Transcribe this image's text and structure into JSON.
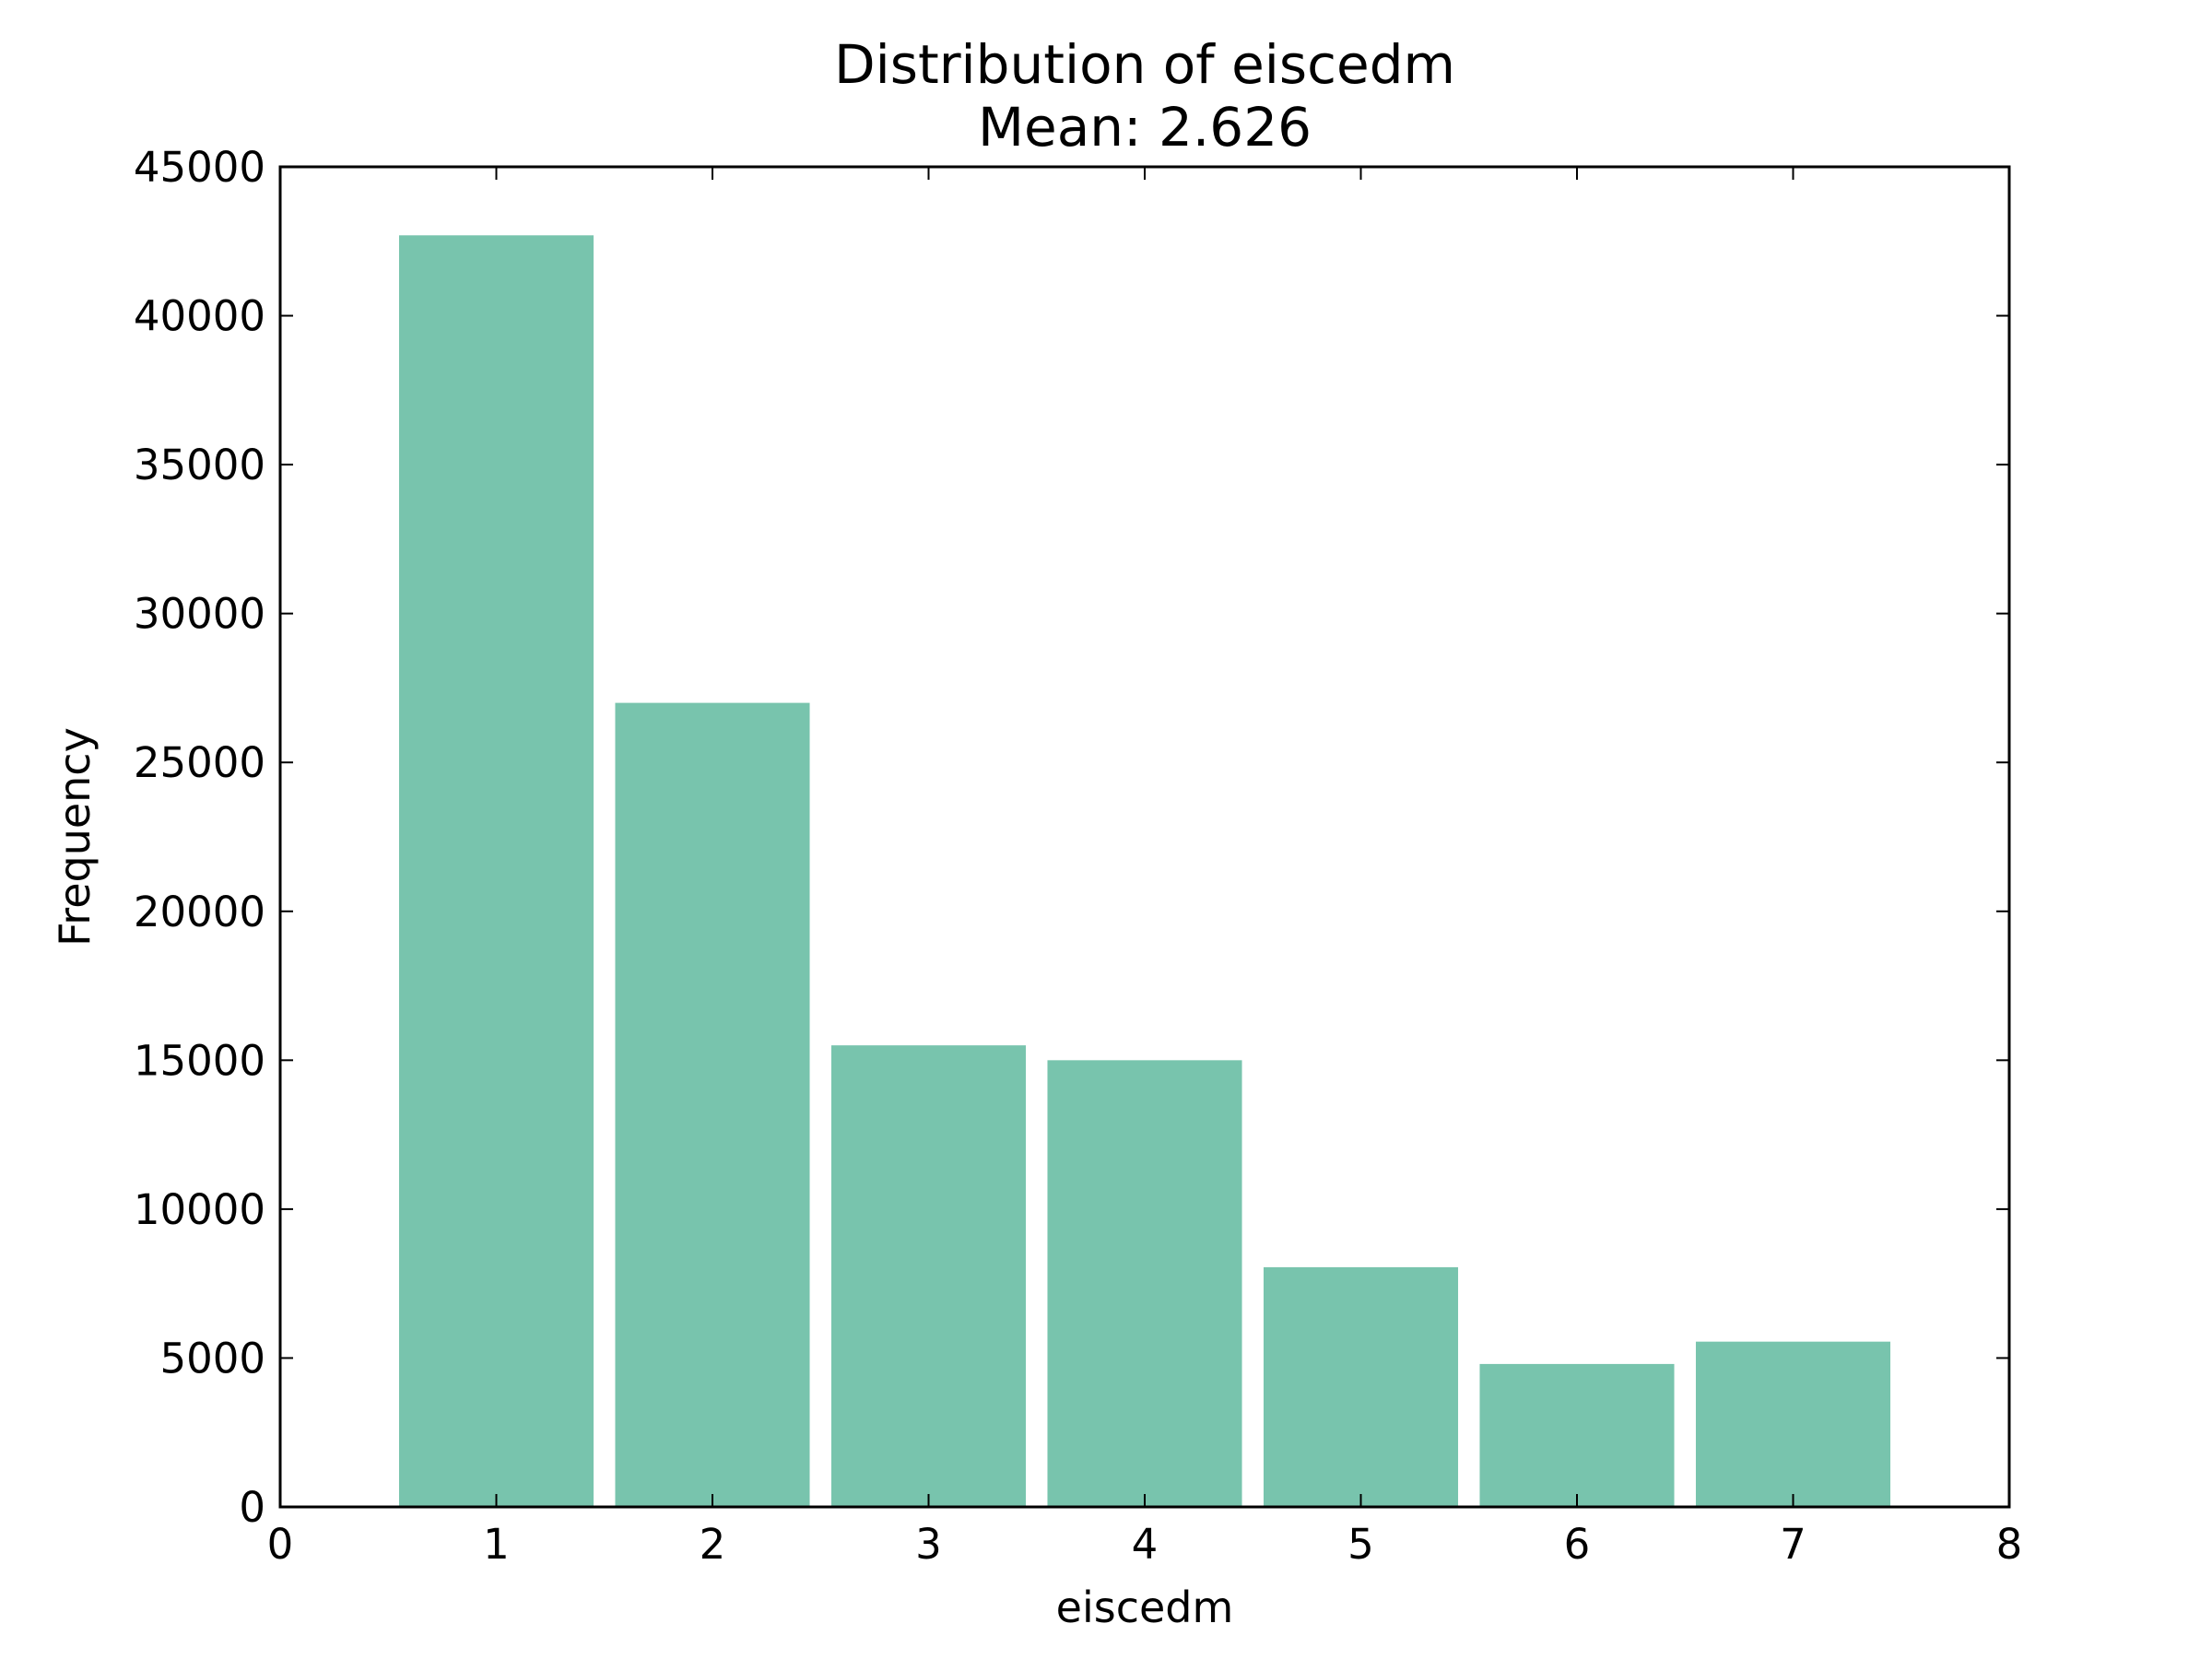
{
  "chart_data": {
    "type": "bar",
    "title": "Distribution of eiscedm",
    "subtitle": "Mean: 2.626",
    "xlabel": "eiscedm",
    "ylabel": "Frequency",
    "categories": [
      1,
      2,
      3,
      4,
      5,
      6,
      7
    ],
    "values": [
      42700,
      27000,
      15500,
      15000,
      8050,
      4800,
      5550
    ],
    "bar_width": 0.9,
    "xlim": [
      0,
      8
    ],
    "ylim": [
      0,
      45000
    ],
    "xticks": [
      0,
      1,
      2,
      3,
      4,
      5,
      6,
      7,
      8
    ],
    "yticks": [
      0,
      5000,
      10000,
      15000,
      20000,
      25000,
      30000,
      35000,
      40000,
      45000
    ],
    "grid": false,
    "colors": {
      "bar": "#78c4ad",
      "axes": "#000000",
      "background": "#ffffff"
    }
  }
}
